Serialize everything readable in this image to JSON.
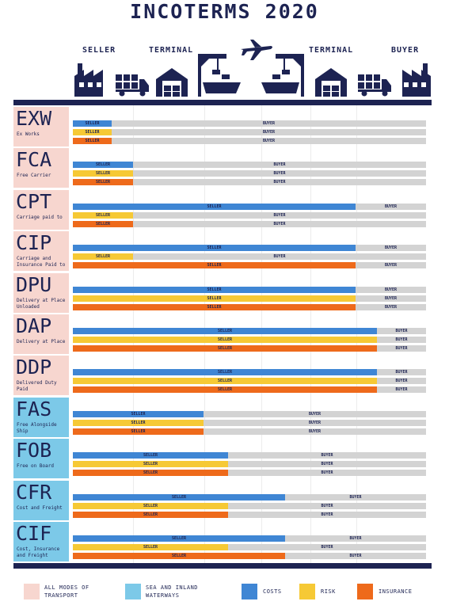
{
  "title": "INCOTERMS 2020",
  "header": {
    "seller": "SELLER",
    "terminal_left": "TERMINAL",
    "terminal_right": "TERMINAL",
    "buyer": "BUYER"
  },
  "colors": {
    "navy": "#1d2352",
    "all_modes_bg": "#f7d6cf",
    "sea_bg": "#7cc9e8",
    "costs": "#3f86d4",
    "risk": "#f6c935",
    "insurance": "#ee6a1b",
    "track": "#d3d3d3"
  },
  "icons": [
    "factory-icon",
    "truck-icon",
    "warehouse-icon",
    "port-crane-icon",
    "airplane-icon",
    "port-crane-icon",
    "warehouse-icon",
    "truck-icon",
    "factory-icon"
  ],
  "scale_note_seller_to_buyer": "positions 0 = seller, 1 = buyer",
  "terms": [
    {
      "code": "EXW",
      "desc": "Ex Works",
      "mode": "all",
      "rows": [
        {
          "type": "costs",
          "split": 0.11,
          "seller": "SELLER",
          "buyer": "BUYER"
        },
        {
          "type": "risk",
          "split": 0.11,
          "seller": "SELLER",
          "buyer": "BUYER"
        },
        {
          "type": "insurance",
          "split": 0.11,
          "seller": "SELLER",
          "buyer": "BUYER"
        }
      ]
    },
    {
      "code": "FCA",
      "desc": "Free Carrier",
      "mode": "all",
      "rows": [
        {
          "type": "costs",
          "split": 0.17,
          "seller": "SELLER",
          "buyer": "BUYER"
        },
        {
          "type": "risk",
          "split": 0.17,
          "seller": "SELLER",
          "buyer": "BUYER"
        },
        {
          "type": "insurance",
          "split": 0.17,
          "seller": "SELLER",
          "buyer": "BUYER"
        }
      ]
    },
    {
      "code": "CPT",
      "desc": "Carriage paid to",
      "mode": "all",
      "rows": [
        {
          "type": "costs",
          "split": 0.8,
          "seller": "SELLER",
          "buyer": "BUYER"
        },
        {
          "type": "risk",
          "split": 0.17,
          "seller": "SELLER",
          "buyer": "BUYER"
        },
        {
          "type": "insurance",
          "split": 0.17,
          "seller": "SELLER",
          "buyer": "BUYER"
        }
      ]
    },
    {
      "code": "CIP",
      "desc": "Carriage and Insurance Paid to",
      "mode": "all",
      "rows": [
        {
          "type": "costs",
          "split": 0.8,
          "seller": "SELLER",
          "buyer": "BUYER"
        },
        {
          "type": "risk",
          "split": 0.17,
          "seller": "SELLER",
          "buyer": "BUYER"
        },
        {
          "type": "insurance",
          "split": 0.8,
          "seller": "SELLER",
          "buyer": "BUYER"
        }
      ]
    },
    {
      "code": "DPU",
      "desc": "Delivery at Place Unloaded",
      "mode": "all",
      "rows": [
        {
          "type": "costs",
          "split": 0.8,
          "seller": "SELLER",
          "buyer": "BUYER"
        },
        {
          "type": "risk",
          "split": 0.8,
          "seller": "SELLER",
          "buyer": "BUYER"
        },
        {
          "type": "insurance",
          "split": 0.8,
          "seller": "SELLER",
          "buyer": "BUYER"
        }
      ]
    },
    {
      "code": "DAP",
      "desc": "Delivery at Place",
      "mode": "all",
      "rows": [
        {
          "type": "costs",
          "split": 0.86,
          "seller": "SELLER",
          "buyer": "BUYER"
        },
        {
          "type": "risk",
          "split": 0.86,
          "seller": "SELLER",
          "buyer": "BUYER"
        },
        {
          "type": "insurance",
          "split": 0.86,
          "seller": "SELLER",
          "buyer": "BUYER"
        }
      ]
    },
    {
      "code": "DDP",
      "desc": "Delivered Duty Paid",
      "mode": "all",
      "rows": [
        {
          "type": "costs",
          "split": 0.86,
          "seller": "SELLER",
          "buyer": "BUYER"
        },
        {
          "type": "risk",
          "split": 0.86,
          "seller": "SELLER",
          "buyer": "BUYER"
        },
        {
          "type": "insurance",
          "split": 0.86,
          "seller": "SELLER",
          "buyer": "BUYER"
        }
      ]
    },
    {
      "code": "FAS",
      "desc": "Free Alongside Ship",
      "mode": "sea",
      "rows": [
        {
          "type": "costs",
          "split": 0.37,
          "seller": "SELLER",
          "buyer": "BUYER"
        },
        {
          "type": "risk",
          "split": 0.37,
          "seller": "SELLER",
          "buyer": "BUYER"
        },
        {
          "type": "insurance",
          "split": 0.37,
          "seller": "SELLER",
          "buyer": "BUYER"
        }
      ]
    },
    {
      "code": "FOB",
      "desc": "Free on Board",
      "mode": "sea",
      "rows": [
        {
          "type": "costs",
          "split": 0.44,
          "seller": "SELLER",
          "buyer": "BUYER"
        },
        {
          "type": "risk",
          "split": 0.44,
          "seller": "SELLER",
          "buyer": "BUYER"
        },
        {
          "type": "insurance",
          "split": 0.44,
          "seller": "SELLER",
          "buyer": "BUYER"
        }
      ]
    },
    {
      "code": "CFR",
      "desc": "Cost and Freight",
      "mode": "sea",
      "rows": [
        {
          "type": "costs",
          "split": 0.6,
          "seller": "SELLER",
          "buyer": "BUYER"
        },
        {
          "type": "risk",
          "split": 0.44,
          "seller": "SELLER",
          "buyer": "BUYER"
        },
        {
          "type": "insurance",
          "split": 0.44,
          "seller": "SELLER",
          "buyer": "BUYER"
        }
      ]
    },
    {
      "code": "CIF",
      "desc": "Cost, Insurance and Freight",
      "mode": "sea",
      "rows": [
        {
          "type": "costs",
          "split": 0.6,
          "seller": "SELLER",
          "buyer": "BUYER"
        },
        {
          "type": "risk",
          "split": 0.44,
          "seller": "SELLER",
          "buyer": "BUYER"
        },
        {
          "type": "insurance",
          "split": 0.6,
          "seller": "SELLER",
          "buyer": "BUYER"
        }
      ]
    }
  ],
  "legend": {
    "all_modes": "ALL MODES OF TRANSPORT",
    "sea": "SEA AND INLAND WATERWAYS",
    "costs": "COSTS",
    "risk": "RISK",
    "insurance": "INSURANCE"
  }
}
